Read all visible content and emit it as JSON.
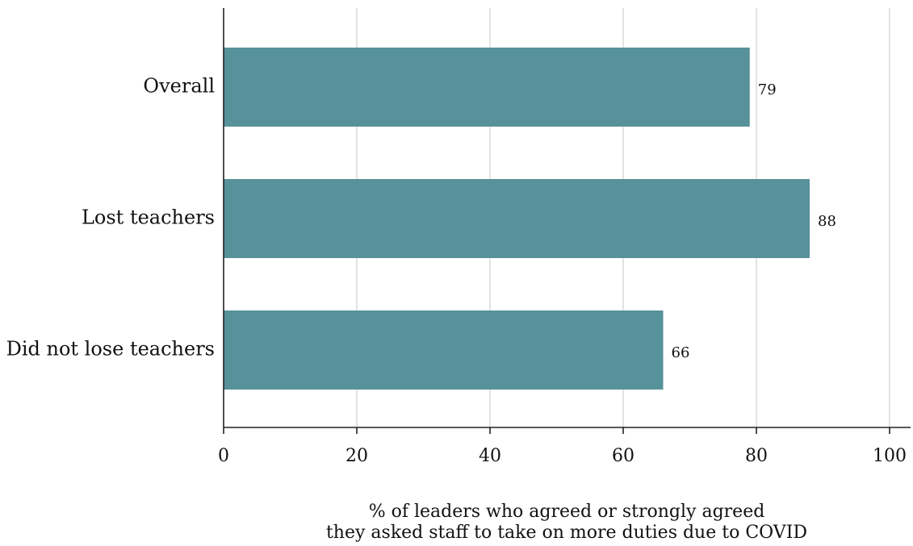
{
  "chart_data": {
    "type": "bar",
    "orientation": "horizontal",
    "categories": [
      "Overall",
      "Lost teachers",
      "Did not lose teachers"
    ],
    "values": [
      79,
      88,
      66
    ],
    "value_labels": [
      "79",
      "88",
      "66"
    ],
    "xlim": [
      0,
      100
    ],
    "xticks": [
      0,
      20,
      40,
      60,
      80,
      100
    ],
    "xtick_labels": [
      "0",
      "20",
      "40",
      "60",
      "80",
      "100"
    ],
    "xlabel_lines": [
      "% of leaders who agreed or strongly agreed",
      "they asked staff to take on more duties due to COVID"
    ],
    "grid": "vertical",
    "legend": "none",
    "bar_color": "#57919a"
  }
}
